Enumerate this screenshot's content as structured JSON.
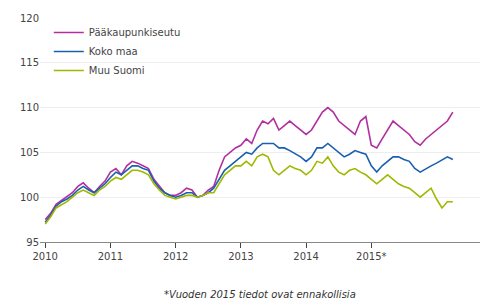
{
  "chart_data": {
    "type": "line",
    "annotations": [
      "*Vuoden 2015 tiedot ovat ennakollisia"
    ],
    "x": [
      2010,
      2010.0833333333333,
      2010.1666666666667,
      2010.25,
      2010.3333333333333,
      2010.4166666666667,
      2010.5,
      2010.5833333333333,
      2010.6666666666667,
      2010.75,
      2010.8333333333333,
      2010.9166666666667,
      2011,
      2011.0833333333333,
      2011.1666666666667,
      2011.25,
      2011.3333333333333,
      2011.4166666666667,
      2011.5,
      2011.5833333333333,
      2011.6666666666667,
      2011.75,
      2011.8333333333333,
      2011.9166666666667,
      2012,
      2012.0833333333333,
      2012.1666666666667,
      2012.25,
      2012.3333333333333,
      2012.4166666666667,
      2012.5,
      2012.5833333333333,
      2012.6666666666667,
      2012.75,
      2012.8333333333333,
      2012.9166666666667,
      2013,
      2013.0833333333333,
      2013.1666666666667,
      2013.25,
      2013.3333333333333,
      2013.4166666666667,
      2013.5,
      2013.5833333333333,
      2013.6666666666667,
      2013.75,
      2013.8333333333333,
      2013.9166666666667,
      2014,
      2014.0833333333333,
      2014.1666666666667,
      2014.25,
      2014.3333333333333,
      2014.4166666666667,
      2014.5,
      2014.5833333333333,
      2014.6666666666667,
      2014.75,
      2014.8333333333333,
      2014.9166666666667,
      2015,
      2015.0833333333333,
      2015.1666666666667,
      2015.25,
      2015.3333333333333,
      2015.4166666666667,
      2015.5,
      2015.5833333333333,
      2015.6666666666667,
      2015.75,
      2015.8333333333333,
      2015.9166666666667,
      2016,
      2016.0833333333333,
      2016.1666666666667,
      2016.25
    ],
    "series": [
      {
        "name": "Pääkaupunkiseutu",
        "color": "#b030a0",
        "values": [
          97.5,
          98.2,
          99.2,
          99.6,
          100.0,
          100.5,
          101.2,
          101.6,
          101.0,
          100.5,
          101.2,
          101.8,
          102.8,
          103.2,
          102.5,
          103.5,
          104.0,
          103.8,
          103.5,
          103.2,
          102.0,
          101.2,
          100.5,
          100.2,
          100.2,
          100.5,
          101.0,
          100.8,
          100.0,
          100.2,
          100.8,
          101.2,
          103.0,
          104.5,
          105.0,
          105.5,
          105.8,
          106.5,
          106.0,
          107.5,
          108.5,
          108.2,
          108.8,
          107.5,
          108.0,
          108.5,
          108.0,
          107.5,
          107.0,
          107.5,
          108.5,
          109.5,
          110.0,
          109.5,
          108.5,
          108.0,
          107.5,
          107.0,
          108.5,
          109.0,
          105.8,
          105.5,
          106.5,
          107.5,
          108.5,
          108.0,
          107.5,
          107.0,
          106.2,
          105.8,
          106.5,
          107.0,
          107.5,
          108.0,
          108.5,
          109.5
        ]
      },
      {
        "name": "Koko maa",
        "color": "#1a5fb0",
        "values": [
          97.2,
          98.0,
          99.0,
          99.5,
          99.8,
          100.2,
          100.8,
          101.2,
          100.8,
          100.5,
          101.0,
          101.5,
          102.2,
          102.8,
          102.5,
          103.0,
          103.5,
          103.5,
          103.2,
          103.0,
          101.8,
          101.0,
          100.5,
          100.2,
          100.0,
          100.2,
          100.5,
          100.5,
          100.0,
          100.2,
          100.5,
          101.0,
          102.0,
          103.0,
          103.5,
          104.0,
          104.5,
          105.0,
          104.8,
          105.5,
          106.0,
          106.0,
          106.0,
          105.5,
          105.5,
          105.2,
          104.8,
          104.5,
          104.0,
          104.5,
          105.5,
          105.5,
          106.0,
          105.5,
          105.0,
          104.5,
          104.8,
          105.2,
          105.0,
          104.8,
          103.5,
          102.8,
          103.5,
          104.0,
          104.5,
          104.5,
          104.2,
          104.0,
          103.2,
          102.8,
          103.2,
          103.5,
          103.8,
          104.2,
          104.5,
          104.2
        ]
      },
      {
        "name": "Muu Suomi",
        "color": "#a0b800",
        "values": [
          97.0,
          97.8,
          98.8,
          99.2,
          99.5,
          100.0,
          100.5,
          100.8,
          100.5,
          100.2,
          100.8,
          101.2,
          101.8,
          102.2,
          102.0,
          102.5,
          103.0,
          103.0,
          102.8,
          102.5,
          101.5,
          100.8,
          100.2,
          100.0,
          99.8,
          100.0,
          100.2,
          100.2,
          100.0,
          100.2,
          100.5,
          100.5,
          101.5,
          102.5,
          103.0,
          103.5,
          103.5,
          104.0,
          103.5,
          104.5,
          104.8,
          104.5,
          103.0,
          102.5,
          103.0,
          103.5,
          103.2,
          103.0,
          102.5,
          103.0,
          104.0,
          103.8,
          104.5,
          103.5,
          102.8,
          102.5,
          103.0,
          103.2,
          102.8,
          102.5,
          102.0,
          101.5,
          102.0,
          102.5,
          102.0,
          101.5,
          101.2,
          101.0,
          100.5,
          100.0,
          100.5,
          101.0,
          99.8,
          98.8,
          99.5,
          99.5
        ]
      }
    ],
    "xlim": [
      2009.92,
      2016.6666666666667
    ],
    "xticks": [
      2010,
      2011,
      2012,
      2013,
      2014,
      {
        "value": 2015,
        "label": "2015*"
      }
    ],
    "ylim": [
      95,
      120
    ],
    "yticks": [
      95,
      100,
      105,
      110,
      115,
      120
    ],
    "grid": true,
    "legend": "upper left"
  }
}
